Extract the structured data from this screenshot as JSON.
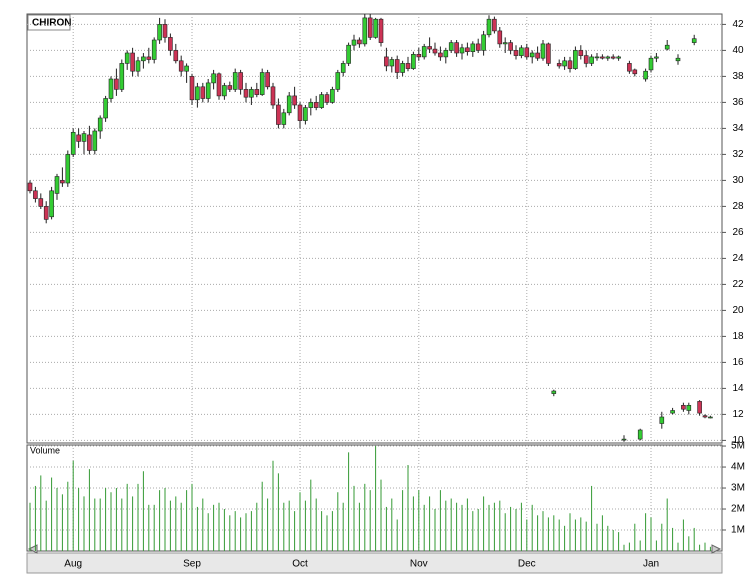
{
  "chart_data": {
    "type": "candlestick",
    "title": "CHIRON",
    "categories": [
      null,
      null,
      null,
      null,
      null,
      null,
      null,
      null,
      "Aug",
      null,
      null,
      null,
      null,
      null,
      null,
      null,
      null,
      null,
      null,
      null,
      null,
      null,
      null,
      null,
      null,
      null,
      null,
      null,
      null,
      null,
      "Sep",
      null,
      null,
      null,
      null,
      null,
      null,
      null,
      null,
      null,
      null,
      null,
      null,
      null,
      null,
      null,
      null,
      null,
      null,
      null,
      "Oct",
      null,
      null,
      null,
      null,
      null,
      null,
      null,
      null,
      null,
      null,
      null,
      null,
      null,
      null,
      null,
      null,
      null,
      null,
      null,
      null,
      null,
      "Nov",
      null,
      null,
      null,
      null,
      null,
      null,
      null,
      null,
      null,
      null,
      null,
      null,
      null,
      null,
      null,
      null,
      null,
      null,
      null,
      "Dec",
      null,
      null,
      null,
      null,
      null,
      null,
      null,
      null,
      null,
      null,
      null,
      null,
      null,
      null,
      null,
      null,
      null,
      null,
      null,
      null,
      null,
      null,
      "Jan",
      null,
      null,
      null,
      null,
      null,
      null,
      null,
      null,
      null,
      null,
      null
    ],
    "open": [
      29.8,
      29.2,
      28.6,
      28,
      27.2,
      29,
      30,
      29.8,
      32,
      33.5,
      33,
      33.5,
      32.3,
      33.8,
      34.8,
      36.3,
      37.8,
      37,
      39,
      39.8,
      38.4,
      39.2,
      39.5,
      39.3,
      40.8,
      42,
      41,
      40,
      39.2,
      38.4,
      38,
      36.2,
      37.2,
      36.3,
      37.5,
      38.2,
      36.5,
      37.3,
      37,
      38.3,
      37,
      36.4,
      37,
      36.6,
      38.3,
      37.2,
      35.8,
      34.3,
      35.2,
      36.5,
      35.8,
      34.6,
      35.6,
      36,
      35.6,
      36.6,
      36,
      37,
      38.3,
      39,
      40.4,
      40.8,
      40.5,
      42.5,
      41,
      42.4,
      39.5,
      38.8,
      39.3,
      38.3,
      39,
      38.6,
      39.7,
      39.5,
      40.3,
      40.1,
      39.8,
      39.5,
      40,
      40.6,
      39.8,
      40.2,
      39.9,
      40.5,
      40,
      41.2,
      42.4,
      41.5,
      40.5,
      40.6,
      40,
      39.6,
      40.2,
      39.5,
      39.8,
      39.4,
      40.5,
      13.6,
      39,
      38.8,
      39.2,
      38.6,
      40,
      39.6,
      39,
      39.5,
      39.5,
      39.4,
      39.5,
      39.4,
      10.1,
      39,
      38.5,
      10.1,
      37.8,
      38.5,
      39.4,
      11.3,
      40.1,
      12.1,
      39.2,
      12.7,
      12.3,
      40.6,
      13,
      11.9,
      11.8
    ],
    "high": [
      30,
      29.5,
      29,
      28.4,
      29.5,
      30.5,
      31,
      32.3,
      34,
      34,
      33.8,
      34.2,
      34,
      35,
      36.5,
      38,
      38.6,
      39.3,
      40,
      40.2,
      39.5,
      39.8,
      40.2,
      41,
      42.5,
      42.4,
      41.3,
      40.5,
      39.6,
      39,
      38.2,
      37.5,
      37.5,
      37.8,
      38.5,
      38.3,
      37.5,
      37.6,
      38.6,
      38.5,
      37.5,
      37.2,
      37.5,
      38.6,
      38.5,
      37.5,
      36.3,
      35.5,
      36.8,
      37.2,
      36,
      35.8,
      36.3,
      36.5,
      36.8,
      36.8,
      37.2,
      38.5,
      39.2,
      40.6,
      41.2,
      41,
      42.8,
      42.8,
      42.5,
      42.5,
      40.2,
      39.5,
      39.6,
      39.2,
      39.5,
      39.9,
      40.2,
      40.5,
      41,
      40.6,
      40.3,
      40.2,
      40.8,
      40.8,
      40.5,
      40.6,
      40.7,
      40.9,
      41.5,
      42.7,
      42.6,
      41.8,
      41,
      40.8,
      40.4,
      40.4,
      40.5,
      40,
      40.3,
      40.8,
      40.6,
      13.9,
      39.3,
      39.5,
      39.5,
      40.3,
      40.4,
      40,
      39.7,
      39.8,
      39.7,
      39.6,
      39.7,
      39.6,
      10.4,
      39.2,
      38.6,
      10.9,
      38.6,
      39.6,
      39.8,
      12.2,
      40.8,
      12.5,
      39.7,
      12.9,
      12.9,
      41.2,
      13.1,
      12,
      11.9
    ],
    "low": [
      29,
      28.3,
      27.8,
      26.7,
      27,
      28.5,
      29.5,
      29.5,
      31.8,
      32.5,
      32,
      32,
      32,
      33.2,
      34.5,
      36,
      36.5,
      36.8,
      38.5,
      38,
      38,
      38.6,
      39,
      39,
      40.5,
      40.6,
      39.6,
      39,
      38,
      37.5,
      35.8,
      35.6,
      36,
      36,
      37,
      36.2,
      36.2,
      36.8,
      36.8,
      36.6,
      36,
      35.8,
      36.4,
      36.5,
      37,
      35.5,
      34,
      34,
      35,
      35.5,
      34,
      34.3,
      35,
      35.4,
      35.5,
      35.8,
      35.9,
      36.8,
      38,
      38.8,
      40,
      40.2,
      40.3,
      40.8,
      40.9,
      40.3,
      38.4,
      38.3,
      37.8,
      38,
      38.4,
      38.5,
      39.2,
      39.3,
      39.8,
      39.6,
      39.2,
      39,
      39.8,
      39.5,
      39.3,
      39.6,
      39.5,
      39.8,
      39.6,
      41,
      41.3,
      40.2,
      39.8,
      39.7,
      39.3,
      39.4,
      39.3,
      39,
      39.2,
      39.2,
      38.8,
      13.4,
      38.6,
      38.5,
      38.3,
      38.5,
      39.3,
      38.7,
      38.8,
      39.2,
      39.3,
      39.2,
      39.3,
      39.2,
      9.9,
      38.2,
      38,
      10,
      37.6,
      38.3,
      39.1,
      10.9,
      40,
      12,
      38.9,
      12.2,
      12,
      40.4,
      11.9,
      11.7,
      11.7
    ],
    "close": [
      29.2,
      28.6,
      28,
      27,
      29.2,
      30.3,
      29.8,
      32,
      33.7,
      33,
      33.6,
      32.3,
      33.8,
      34.8,
      36.3,
      37.8,
      37,
      39,
      39.8,
      38.4,
      39.2,
      39.5,
      39.3,
      40.8,
      42,
      41,
      40,
      39.2,
      38.4,
      38.8,
      36.2,
      37.2,
      36.3,
      37.5,
      38.2,
      36.5,
      37.3,
      37,
      38.3,
      37,
      36.4,
      37,
      36.6,
      38.3,
      37.2,
      35.8,
      34.3,
      35.2,
      36.5,
      35.8,
      34.6,
      35.6,
      36,
      35.6,
      36.6,
      36,
      37,
      38.3,
      39,
      40.4,
      40.8,
      40.5,
      42.5,
      41,
      42.4,
      40.6,
      38.8,
      39.3,
      38.3,
      39,
      38.6,
      39.7,
      39.5,
      40.3,
      40.1,
      39.8,
      39.5,
      40,
      40.6,
      39.8,
      40.2,
      39.9,
      40.5,
      40,
      41.2,
      42.4,
      41.5,
      40.5,
      40.6,
      40,
      39.6,
      40.2,
      39.5,
      39.8,
      39.4,
      40.5,
      39,
      13.8,
      38.8,
      39.2,
      38.6,
      40,
      39.6,
      39,
      39.5,
      39.5,
      39.4,
      39.5,
      39.4,
      39.5,
      10.1,
      38.4,
      38.2,
      10.8,
      38.4,
      39.4,
      39.5,
      11.8,
      40.4,
      12.3,
      39.4,
      12.4,
      12.7,
      40.9,
      12.1,
      11.8,
      11.8
    ],
    "up_color": "#33cc33",
    "down_color": "#cc3355",
    "ylim": [
      9.8,
      42.8
    ],
    "yticks": [
      10,
      12,
      14,
      16,
      18,
      20,
      22,
      24,
      26,
      28,
      30,
      32,
      34,
      36,
      38,
      40,
      42
    ],
    "grid": true,
    "volume": {
      "label": "Volume",
      "color": "#339933",
      "values": [
        2.3,
        3.1,
        3.6,
        2.4,
        3.5,
        3.0,
        2.7,
        3.3,
        4.3,
        3.0,
        2.6,
        3.9,
        2.5,
        2.5,
        3.0,
        2.8,
        3.0,
        2.5,
        3.2,
        2.6,
        3.2,
        3.8,
        2.2,
        2.2,
        2.9,
        3.0,
        2.4,
        2.6,
        2.3,
        2.9,
        3.2,
        2.1,
        2.5,
        1.8,
        2.2,
        2.3,
        2.0,
        1.7,
        1.9,
        1.6,
        1.8,
        1.9,
        2.3,
        3.3,
        2.5,
        4.3,
        3.7,
        2.3,
        2.4,
        1.9,
        2.8,
        2.4,
        3.4,
        2.5,
        1.9,
        1.7,
        1.9,
        2.8,
        2.3,
        4.7,
        3.1,
        2.3,
        3.2,
        2.9,
        5.0,
        3.4,
        2.1,
        2.5,
        1.5,
        2.9,
        4.1,
        2.6,
        2.9,
        2.2,
        2.6,
        2.0,
        2.9,
        2.4,
        2.5,
        2.3,
        2.2,
        2.5,
        1.9,
        2.0,
        2.6,
        2.2,
        2.3,
        2.4,
        1.8,
        2.1,
        2.0,
        2.3,
        1.5,
        2.2,
        1.7,
        1.9,
        1.6,
        1.7,
        1.5,
        1.2,
        1.8,
        1.5,
        1.6,
        1.4,
        3.1,
        1.3,
        1.7,
        1.2,
        1.0,
        0.9,
        0.3,
        0.4,
        1.3,
        0.5,
        1.8,
        1.6,
        0.5,
        1.3,
        2.5,
        1.1,
        0.4,
        1.5,
        0.7,
        1.1,
        0.3,
        0.4,
        0.2
      ],
      "ylim": [
        0,
        5.05
      ],
      "yticks": [
        {
          "value": 1,
          "label": "1M"
        },
        {
          "value": 2,
          "label": "2M"
        },
        {
          "value": 3,
          "label": "3M"
        },
        {
          "value": 4,
          "label": "4M"
        },
        {
          "value": 5,
          "label": "5M"
        }
      ]
    }
  }
}
